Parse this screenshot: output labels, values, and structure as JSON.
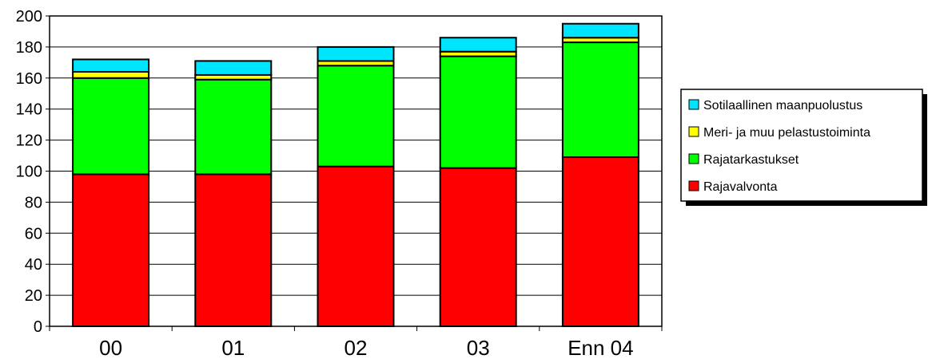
{
  "chart_data": {
    "type": "bar",
    "stacked": true,
    "categories": [
      "00",
      "01",
      "02",
      "03",
      "Enn 04"
    ],
    "series": [
      {
        "name": "Rajavalvonta",
        "values": [
          98,
          98,
          103,
          102,
          109
        ],
        "color": "#ff0000"
      },
      {
        "name": "Rajatarkastukset",
        "values": [
          62,
          61,
          65,
          72,
          74
        ],
        "color": "#00ff00"
      },
      {
        "name": "Meri- ja muu pelastustoiminta",
        "values": [
          4,
          3,
          3,
          3,
          3
        ],
        "color": "#ffff00"
      },
      {
        "name": "Sotilaallinen maanpuolustus",
        "values": [
          8,
          9,
          9,
          9,
          9
        ],
        "color": "#00e5ff"
      }
    ],
    "ylim": [
      0,
      200
    ],
    "yticks": [
      "0",
      "20",
      "40",
      "60",
      "80",
      "100",
      "120",
      "140",
      "160",
      "180",
      "200"
    ],
    "grid": true,
    "legend_position": "right",
    "legend_order": [
      "Sotilaallinen maanpuolustus",
      "Meri- ja muu pelastustoiminta",
      "Rajatarkastukset",
      "Rajavalvonta"
    ]
  }
}
